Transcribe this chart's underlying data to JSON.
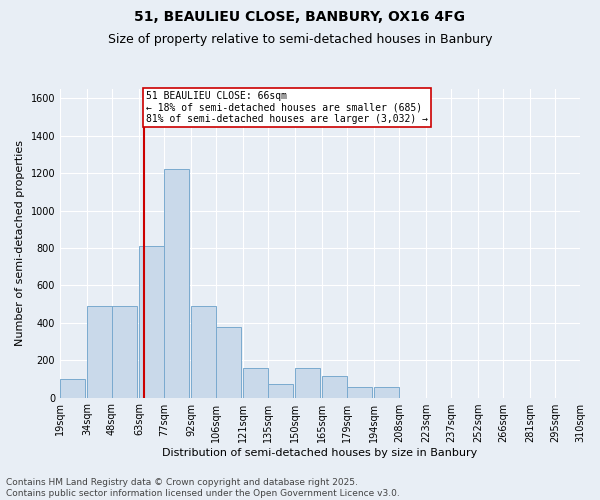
{
  "title_line1": "51, BEAULIEU CLOSE, BANBURY, OX16 4FG",
  "title_line2": "Size of property relative to semi-detached houses in Banbury",
  "xlabel": "Distribution of semi-detached houses by size in Banbury",
  "ylabel": "Number of semi-detached properties",
  "footnote": "Contains HM Land Registry data © Crown copyright and database right 2025.\nContains public sector information licensed under the Open Government Licence v3.0.",
  "bar_left_edges": [
    19,
    34,
    48,
    63,
    77,
    92,
    106,
    121,
    135,
    150,
    165,
    179,
    194,
    208,
    223,
    237,
    252,
    266,
    281,
    295
  ],
  "bar_heights": [
    100,
    490,
    490,
    810,
    1220,
    490,
    380,
    160,
    75,
    160,
    115,
    55,
    55,
    0,
    0,
    0,
    0,
    0,
    0,
    0
  ],
  "bin_width": 14,
  "tick_labels": [
    "19sqm",
    "34sqm",
    "48sqm",
    "63sqm",
    "77sqm",
    "92sqm",
    "106sqm",
    "121sqm",
    "135sqm",
    "150sqm",
    "165sqm",
    "179sqm",
    "194sqm",
    "208sqm",
    "223sqm",
    "237sqm",
    "252sqm",
    "266sqm",
    "281sqm",
    "295sqm",
    "310sqm"
  ],
  "bar_color": "#c9d9ea",
  "bar_edge_color": "#7aaacf",
  "vline_x": 66,
  "vline_color": "#cc0000",
  "annotation_title": "51 BEAULIEU CLOSE: 66sqm",
  "annotation_line1": "← 18% of semi-detached houses are smaller (685)",
  "annotation_line2": "81% of semi-detached houses are larger (3,032) →",
  "annotation_box_color": "#cc0000",
  "ylim": [
    0,
    1650
  ],
  "yticks": [
    0,
    200,
    400,
    600,
    800,
    1000,
    1200,
    1400,
    1600
  ],
  "background_color": "#e8eef5",
  "plot_bg_color": "#e8eef5",
  "grid_color": "#ffffff",
  "title_fontsize": 10,
  "subtitle_fontsize": 9,
  "axis_label_fontsize": 8,
  "tick_fontsize": 7,
  "footnote_fontsize": 6.5
}
